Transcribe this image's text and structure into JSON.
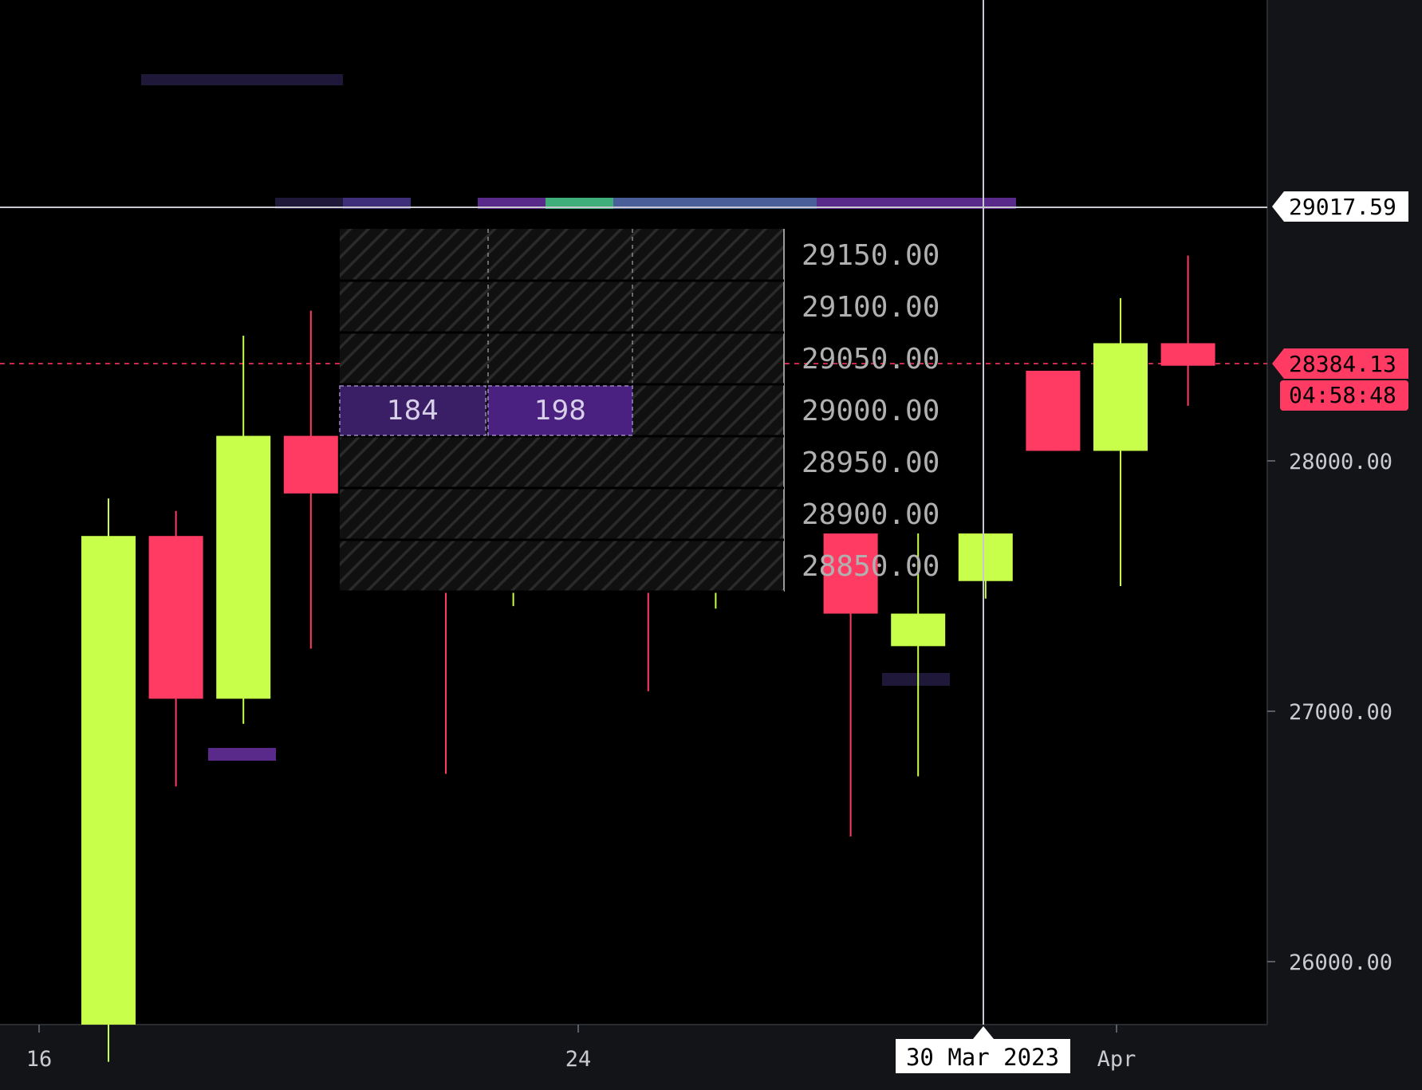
{
  "colors": {
    "background": "#000000",
    "axis_panel": "#131418",
    "up": "#c8ff4a",
    "down": "#ff3b63",
    "crosshair": "#c8c8d0",
    "heat_dark": "#1f1838",
    "heat_mid": "#3f2f7a",
    "heat_purple": "#5a2a8a",
    "heat_green": "#3fae7a",
    "heat_blue": "#4a5f9a",
    "orderbook_highlight": "#3a1f66",
    "orderbook_highlight_2": "#4a2080"
  },
  "crosshair": {
    "price_label": "29017.59",
    "price": 29017.59,
    "date_label": "30 Mar 2023"
  },
  "last_price": {
    "price_label": "28384.13",
    "price": 28384.13,
    "countdown": "04:58:48"
  },
  "orderbook": {
    "price_levels": [
      "29150.00",
      "29100.00",
      "29050.00",
      "29000.00",
      "28950.00",
      "28900.00",
      "28850.00"
    ],
    "highlighted_level": "29000.00",
    "cells": [
      "184",
      "198"
    ]
  },
  "chart_data": {
    "type": "candlestick",
    "x_ticks": [
      "16",
      "24",
      "Apr"
    ],
    "y_ticks": [
      "28000.00",
      "27000.00",
      "26000.00"
    ],
    "ylim": [
      25600,
      29750
    ],
    "candles": [
      {
        "index": 0,
        "open": 25600,
        "high": 27850,
        "low": 25600,
        "close": 27700
      },
      {
        "index": 1,
        "open": 27700,
        "high": 27800,
        "low": 26700,
        "close": 27050
      },
      {
        "index": 2,
        "open": 27050,
        "high": 28500,
        "low": 26950,
        "close": 28100
      },
      {
        "index": 3,
        "open": 28100,
        "high": 28600,
        "low": 27250,
        "close": 27870
      },
      {
        "index": 5,
        "open": 27700,
        "high": 27700,
        "low": 26750,
        "close": 27570
      },
      {
        "index": 6,
        "open": 27570,
        "high": 27710,
        "low": 27420,
        "close": 27710
      },
      {
        "index": 8,
        "open": 27710,
        "high": 27710,
        "low": 27080,
        "close": 27700
      },
      {
        "index": 9,
        "open": 27700,
        "high": 27710,
        "low": 27410,
        "close": 27700
      },
      {
        "index": 11,
        "open": 27710,
        "high": 27710,
        "low": 26500,
        "close": 27390
      },
      {
        "index": 12,
        "open": 27260,
        "high": 27710,
        "low": 26740,
        "close": 27390
      },
      {
        "index": 13,
        "open": 27520,
        "high": 27710,
        "low": 27450,
        "close": 27710
      },
      {
        "index": 14,
        "open": 28360,
        "high": 28360,
        "low": 28040,
        "close": 28040
      },
      {
        "index": 15,
        "open": 28040,
        "high": 28650,
        "low": 27500,
        "close": 28470
      },
      {
        "index": 16,
        "open": 28470,
        "high": 28820,
        "low": 28220,
        "close": 28380
      }
    ]
  }
}
